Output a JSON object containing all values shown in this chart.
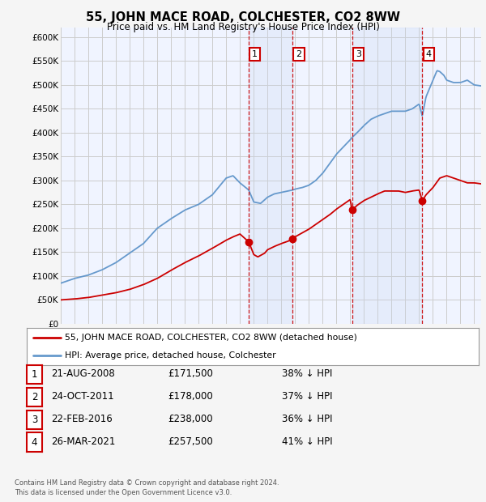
{
  "title": "55, JOHN MACE ROAD, COLCHESTER, CO2 8WW",
  "subtitle": "Price paid vs. HM Land Registry's House Price Index (HPI)",
  "footer1": "Contains HM Land Registry data © Crown copyright and database right 2024.",
  "footer2": "This data is licensed under the Open Government Licence v3.0.",
  "legend_label_red": "55, JOHN MACE ROAD, COLCHESTER, CO2 8WW (detached house)",
  "legend_label_blue": "HPI: Average price, detached house, Colchester",
  "transactions": [
    {
      "num": 1,
      "date": "21-AUG-2008",
      "price": "£171,500",
      "pct": "38% ↓ HPI"
    },
    {
      "num": 2,
      "date": "24-OCT-2011",
      "price": "£178,000",
      "pct": "37% ↓ HPI"
    },
    {
      "num": 3,
      "date": "22-FEB-2016",
      "price": "£238,000",
      "pct": "36% ↓ HPI"
    },
    {
      "num": 4,
      "date": "26-MAR-2021",
      "price": "£257,500",
      "pct": "41% ↓ HPI"
    }
  ],
  "transaction_dates_decimal": [
    2008.638,
    2011.812,
    2016.139,
    2021.231
  ],
  "transaction_prices": [
    171500,
    178000,
    238000,
    257500
  ],
  "ylim": [
    0,
    620000
  ],
  "yticks": [
    0,
    50000,
    100000,
    150000,
    200000,
    250000,
    300000,
    350000,
    400000,
    450000,
    500000,
    550000,
    600000
  ],
  "ytick_labels": [
    "£0",
    "£50K",
    "£100K",
    "£150K",
    "£200K",
    "£250K",
    "£300K",
    "£350K",
    "£400K",
    "£450K",
    "£500K",
    "£550K",
    "£600K"
  ],
  "hpi_color": "#6699cc",
  "red_color": "#cc0000",
  "vline_color": "#cc0000",
  "shade_color": "#ddeeff",
  "background_color": "#f5f5f5",
  "plot_bg": "#ffffff",
  "xlim_start": 1995,
  "xlim_end": 2025.5
}
